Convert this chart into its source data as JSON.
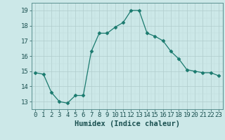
{
  "x": [
    0,
    1,
    2,
    3,
    4,
    5,
    6,
    7,
    8,
    9,
    10,
    11,
    12,
    13,
    14,
    15,
    16,
    17,
    18,
    19,
    20,
    21,
    22,
    23
  ],
  "y": [
    14.9,
    14.8,
    13.6,
    13.0,
    12.9,
    13.4,
    13.4,
    16.3,
    17.5,
    17.5,
    17.9,
    18.2,
    19.0,
    19.0,
    17.5,
    17.3,
    17.0,
    16.3,
    15.8,
    15.1,
    15.0,
    14.9,
    14.9,
    14.7
  ],
  "line_color": "#1a7a6e",
  "marker": "D",
  "marker_size": 2.5,
  "bg_color": "#cce8e8",
  "xlabel": "Humidex (Indice chaleur)",
  "xlabel_fontsize": 7.5,
  "tick_fontsize": 6.5,
  "ylim": [
    12.5,
    19.5
  ],
  "yticks": [
    13,
    14,
    15,
    16,
    17,
    18,
    19
  ],
  "xlim": [
    -0.5,
    23.5
  ],
  "xticks": [
    0,
    1,
    2,
    3,
    4,
    5,
    6,
    7,
    8,
    9,
    10,
    11,
    12,
    13,
    14,
    15,
    16,
    17,
    18,
    19,
    20,
    21,
    22,
    23
  ],
  "spine_color": "#5a9090",
  "tick_color": "#1a5050",
  "major_grid_color": "#b0cccc",
  "minor_grid_color": "#c0dcdc"
}
